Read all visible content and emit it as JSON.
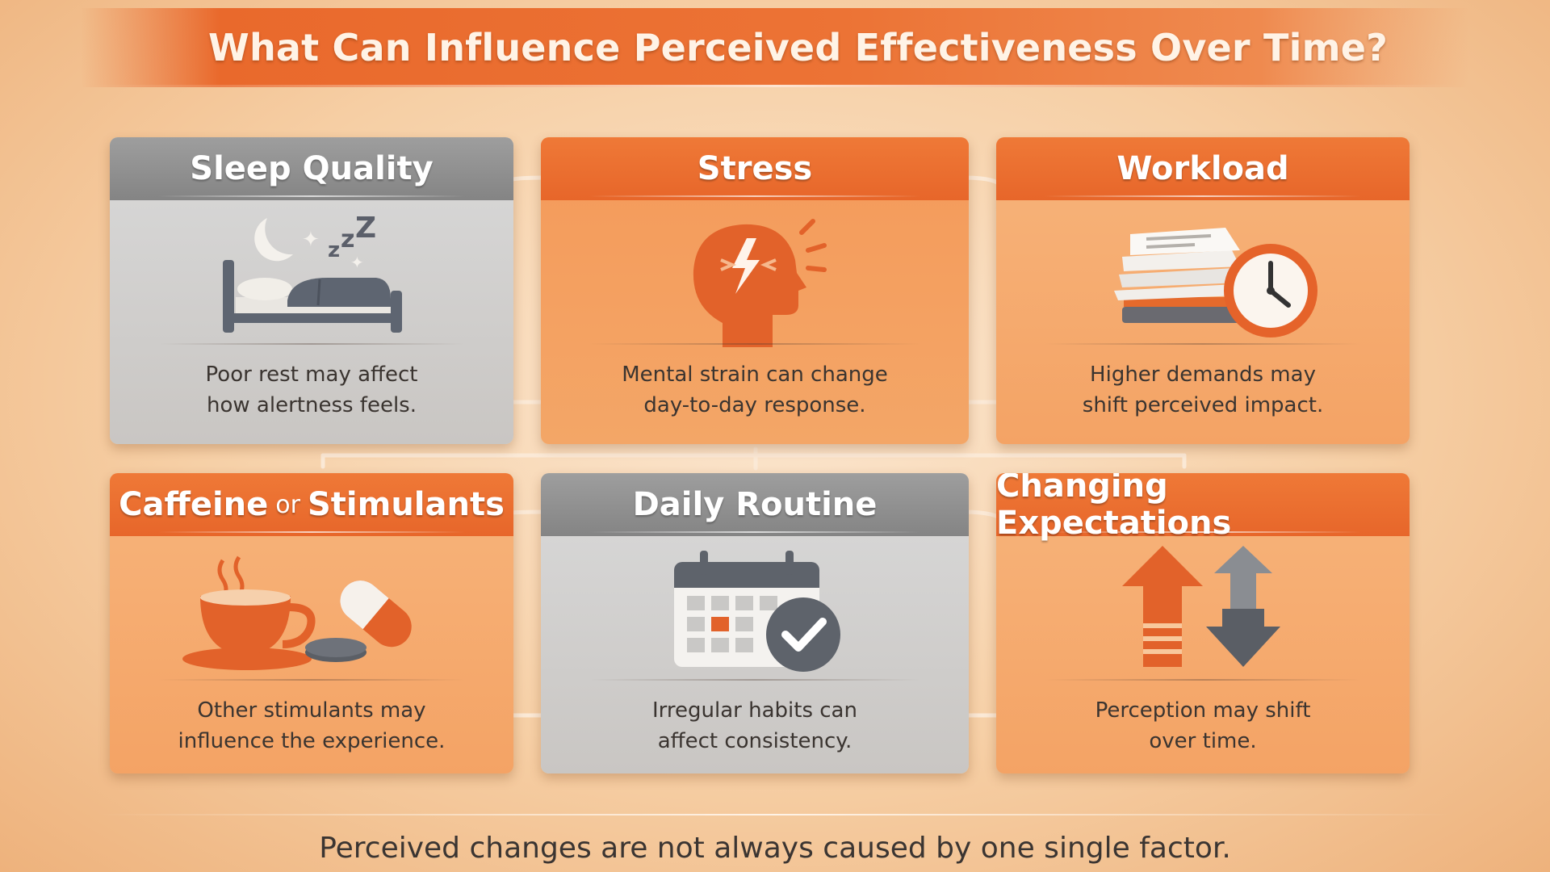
{
  "title": "What Can Influence Perceived Effectiveness Over Time?",
  "cards": [
    {
      "heading": "Sleep Quality",
      "text": "Poor rest may affect\nhow alertness feels.",
      "icon": "bed-moon-icon"
    },
    {
      "heading": "Stress",
      "text": "Mental strain can change\nday-to-day response.",
      "icon": "stressed-head-icon"
    },
    {
      "heading": "Workload",
      "text": "Higher demands may\nshift perceived impact.",
      "icon": "papers-clock-icon"
    },
    {
      "heading_pre": "Caffeine",
      "heading_or": "or",
      "heading_post": "Stimulants",
      "text": "Other stimulants may\ninfluence the experience.",
      "icon": "coffee-pills-icon"
    },
    {
      "heading": "Daily Routine",
      "text": "Irregular habits can\naffect consistency.",
      "icon": "calendar-check-icon"
    },
    {
      "heading": "Changing Expectations",
      "text": "Perception may shift\nover time.",
      "icon": "up-down-arrows-icon"
    }
  ],
  "footer": "Perceived changes are not always caused by one single factor.",
  "colors": {
    "accent": "#e9692c",
    "gray_header": "#8f8f8f",
    "text": "#3a3430"
  }
}
